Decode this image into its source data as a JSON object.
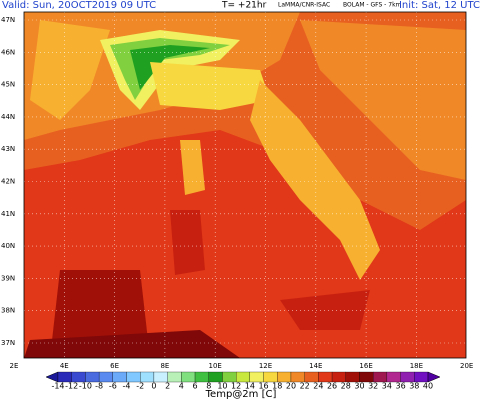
{
  "header": {
    "valid": "Valid: Sun, 20OCT2019  09 UTC",
    "step": "T= +21hr",
    "source": "LaMMA/CNR-ISAC",
    "model": "BOLAM - GFS - 7km",
    "init": "Init: Sat, 12 UTC"
  },
  "map": {
    "lat_labels": [
      "47N",
      "46N",
      "45N",
      "44N",
      "43N",
      "42N",
      "41N",
      "40N",
      "39N",
      "38N",
      "37N"
    ],
    "lon_labels": [
      "2E",
      "4E",
      "6E",
      "8E",
      "10E",
      "12E",
      "14E",
      "16E",
      "18E",
      "20E"
    ]
  },
  "colorbar": {
    "ticks": [
      "-14",
      "-12",
      "-10",
      "-8",
      "-6",
      "-4",
      "-2",
      "0",
      "2",
      "4",
      "6",
      "8",
      "10",
      "12",
      "14",
      "16",
      "18",
      "20",
      "22",
      "24",
      "26",
      "28",
      "30",
      "32",
      "34",
      "36",
      "38",
      "40"
    ],
    "colors": [
      "#1a1a9a",
      "#2a2ab8",
      "#3a4ad0",
      "#4a6ae0",
      "#5a8af0",
      "#6aaaf8",
      "#80c8ff",
      "#a0e0ff",
      "#c8f0ff",
      "#b8f0b8",
      "#80e080",
      "#40c040",
      "#20a020",
      "#80d040",
      "#c8e840",
      "#f0f060",
      "#f8d840",
      "#f8b030",
      "#f08828",
      "#e86020",
      "#e03818",
      "#c82010",
      "#a01008",
      "#800808",
      "#a01850",
      "#b02890",
      "#9020b0",
      "#7010c0",
      "#5000a0"
    ],
    "label": "Temp@2m [C]"
  }
}
